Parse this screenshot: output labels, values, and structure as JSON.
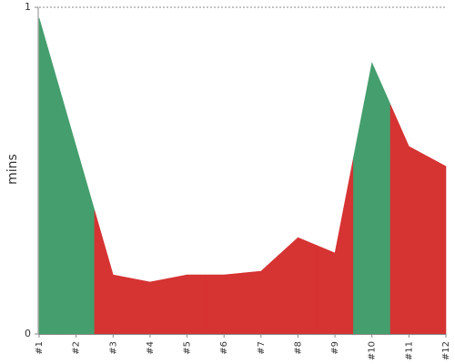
{
  "chart_data": {
    "type": "area",
    "ylabel": "mins",
    "categories": [
      "#1",
      "#2",
      "#3",
      "#4",
      "#5",
      "#6",
      "#7",
      "#8",
      "#9",
      "#10",
      "#11",
      "#12"
    ],
    "values": [
      0.967,
      0.574,
      0.181,
      0.159,
      0.181,
      0.181,
      0.192,
      0.295,
      0.248,
      0.83,
      0.574,
      0.513
    ],
    "colors": [
      "#449e6d",
      "#449e6d",
      "#d63333",
      "#d63333",
      "#d63333",
      "#d63333",
      "#d63333",
      "#d63333",
      "#d63333",
      "#449e6d",
      "#d63333",
      "#d63333"
    ],
    "ylim": [
      0,
      1
    ],
    "yticks": [
      0,
      1
    ],
    "grid": true
  }
}
